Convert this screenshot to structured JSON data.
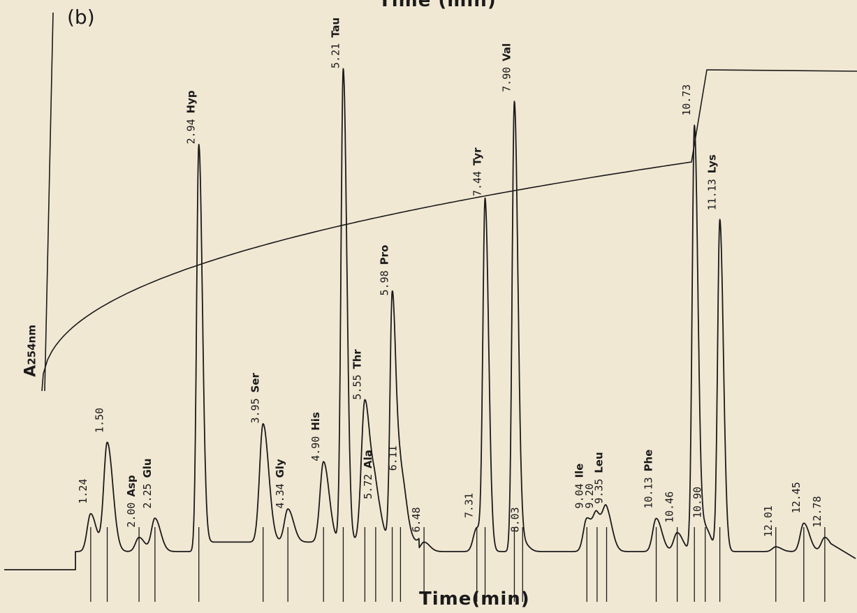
{
  "figure": {
    "panel_label": "(b)",
    "top_axis_label": "Time (min)",
    "bottom_axis_label": "Time(min)",
    "y_label_main": "A",
    "y_label_sub": "254nm"
  },
  "chart_data": {
    "type": "line",
    "title": "",
    "xlabel": "Time(min)",
    "ylabel": "A254nm",
    "xlim": [
      0,
      13.0
    ],
    "grid": false,
    "peaks": [
      {
        "rt": "1.24",
        "t": 1.24,
        "h": 0.08,
        "name": ""
      },
      {
        "rt": "1.50",
        "t": 1.5,
        "h": 0.23,
        "name": ""
      },
      {
        "rt": "2.00",
        "t": 2.0,
        "h": 0.03,
        "name": "Asp"
      },
      {
        "rt": "2.25",
        "t": 2.25,
        "h": 0.07,
        "name": "Glu"
      },
      {
        "rt": "2.94",
        "t": 2.94,
        "h": 0.84,
        "name": "Hyp"
      },
      {
        "rt": "3.95",
        "t": 3.95,
        "h": 0.25,
        "name": "Ser"
      },
      {
        "rt": "4.34",
        "t": 4.34,
        "h": 0.07,
        "name": "Gly"
      },
      {
        "rt": "4.90",
        "t": 4.9,
        "h": 0.17,
        "name": "His"
      },
      {
        "rt": "5.21",
        "t": 5.21,
        "h": 1.0,
        "name": "Tau"
      },
      {
        "rt": "5.55",
        "t": 5.55,
        "h": 0.3,
        "name": "Thr"
      },
      {
        "rt": "5.72",
        "t": 5.72,
        "h": 0.09,
        "name": "Ala"
      },
      {
        "rt": "5.98",
        "t": 5.98,
        "h": 0.52,
        "name": "Pro"
      },
      {
        "rt": "6.11",
        "t": 6.11,
        "h": 0.15,
        "name": ""
      },
      {
        "rt": "6.48",
        "t": 6.48,
        "h": 0.02,
        "name": ""
      },
      {
        "rt": "7.31",
        "t": 7.31,
        "h": 0.05,
        "name": ""
      },
      {
        "rt": "7.44",
        "t": 7.44,
        "h": 0.73,
        "name": "Tyr"
      },
      {
        "rt": "7.90",
        "t": 7.9,
        "h": 0.95,
        "name": "Val"
      },
      {
        "rt": "8.03",
        "t": 8.03,
        "h": 0.02,
        "name": ""
      },
      {
        "rt": "9.04",
        "t": 9.04,
        "h": 0.07,
        "name": "Ile"
      },
      {
        "rt": "9.20",
        "t": 9.2,
        "h": 0.07,
        "name": ""
      },
      {
        "rt": "9.35",
        "t": 9.35,
        "h": 0.08,
        "name": "Leu"
      },
      {
        "rt": "10.13",
        "t": 10.13,
        "h": 0.07,
        "name": "Phe"
      },
      {
        "rt": "10.46",
        "t": 10.46,
        "h": 0.04,
        "name": ""
      },
      {
        "rt": "10.73",
        "t": 10.73,
        "h": 0.9,
        "name": ""
      },
      {
        "rt": "10.90",
        "t": 10.9,
        "h": 0.05,
        "name": ""
      },
      {
        "rt": "11.13",
        "t": 11.13,
        "h": 0.7,
        "name": "Lys"
      },
      {
        "rt": "12.01",
        "t": 12.01,
        "h": 0.01,
        "name": ""
      },
      {
        "rt": "12.45",
        "t": 12.45,
        "h": 0.06,
        "name": ""
      },
      {
        "rt": "12.78",
        "t": 12.78,
        "h": 0.03,
        "name": ""
      }
    ],
    "gradient_profile": "concave-rising, step at ~10.6 min then plateau"
  }
}
